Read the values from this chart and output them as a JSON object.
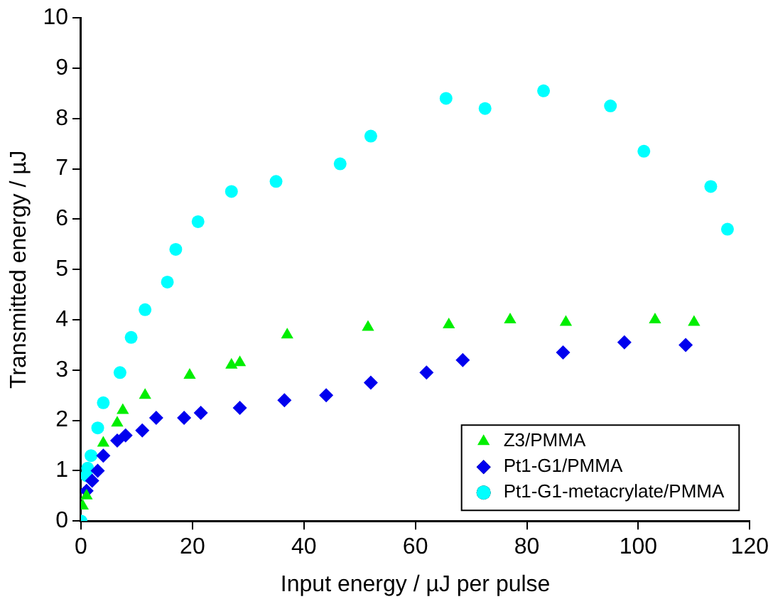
{
  "chart_data": {
    "type": "scatter",
    "xlabel": "Input energy / µJ per pulse",
    "ylabel": "Transmitted energy / µJ",
    "xlim": [
      0,
      120
    ],
    "xticks": [
      0,
      20,
      40,
      60,
      80,
      100,
      120
    ],
    "ylim": [
      0,
      10
    ],
    "yticks": [
      0,
      1,
      2,
      3,
      4,
      5,
      6,
      7,
      8,
      9,
      10
    ],
    "grid": false,
    "legend": "bottom right",
    "series": [
      {
        "name": "Z3/PMMA",
        "color": "#00ee00",
        "marker": "triangle",
        "x": [
          0.3,
          1,
          4,
          6.5,
          7.5,
          11.5,
          19.5,
          27,
          28.5,
          37,
          51.5,
          66,
          77,
          87,
          103,
          110
        ],
        "values": [
          0.3,
          0.5,
          1.55,
          1.95,
          2.2,
          2.5,
          2.9,
          3.1,
          3.15,
          3.7,
          3.85,
          3.9,
          4.0,
          3.95,
          4.0,
          3.95
        ]
      },
      {
        "name": "Pt1-G1/PMMA",
        "color": "#0000ee",
        "marker": "diamond",
        "x": [
          1,
          2,
          3,
          4,
          6.5,
          8,
          11,
          13.5,
          18.5,
          21.5,
          28.5,
          36.5,
          44,
          52,
          62,
          68.5,
          86.5,
          97.5,
          108.5
        ],
        "values": [
          0.6,
          0.8,
          1.0,
          1.3,
          1.6,
          1.7,
          1.8,
          2.05,
          2.05,
          2.15,
          2.25,
          2.4,
          2.5,
          2.75,
          2.95,
          3.2,
          3.35,
          3.55,
          3.5
        ]
      },
      {
        "name": "Pt1-G1-metacrylate/PMMA",
        "color": "#00ffff",
        "marker": "circle",
        "x": [
          0,
          1,
          1.2,
          1.8,
          3,
          4,
          7,
          9,
          11.5,
          15.5,
          17,
          21,
          27,
          35,
          46.5,
          52,
          65.5,
          72.5,
          83,
          95,
          101,
          113,
          116
        ],
        "values": [
          0,
          0.9,
          1.05,
          1.3,
          1.85,
          2.35,
          2.95,
          3.65,
          4.2,
          4.75,
          5.4,
          5.95,
          6.55,
          6.75,
          7.1,
          7.65,
          8.4,
          8.2,
          8.55,
          8.25,
          7.35,
          6.65,
          5.8
        ]
      }
    ]
  }
}
